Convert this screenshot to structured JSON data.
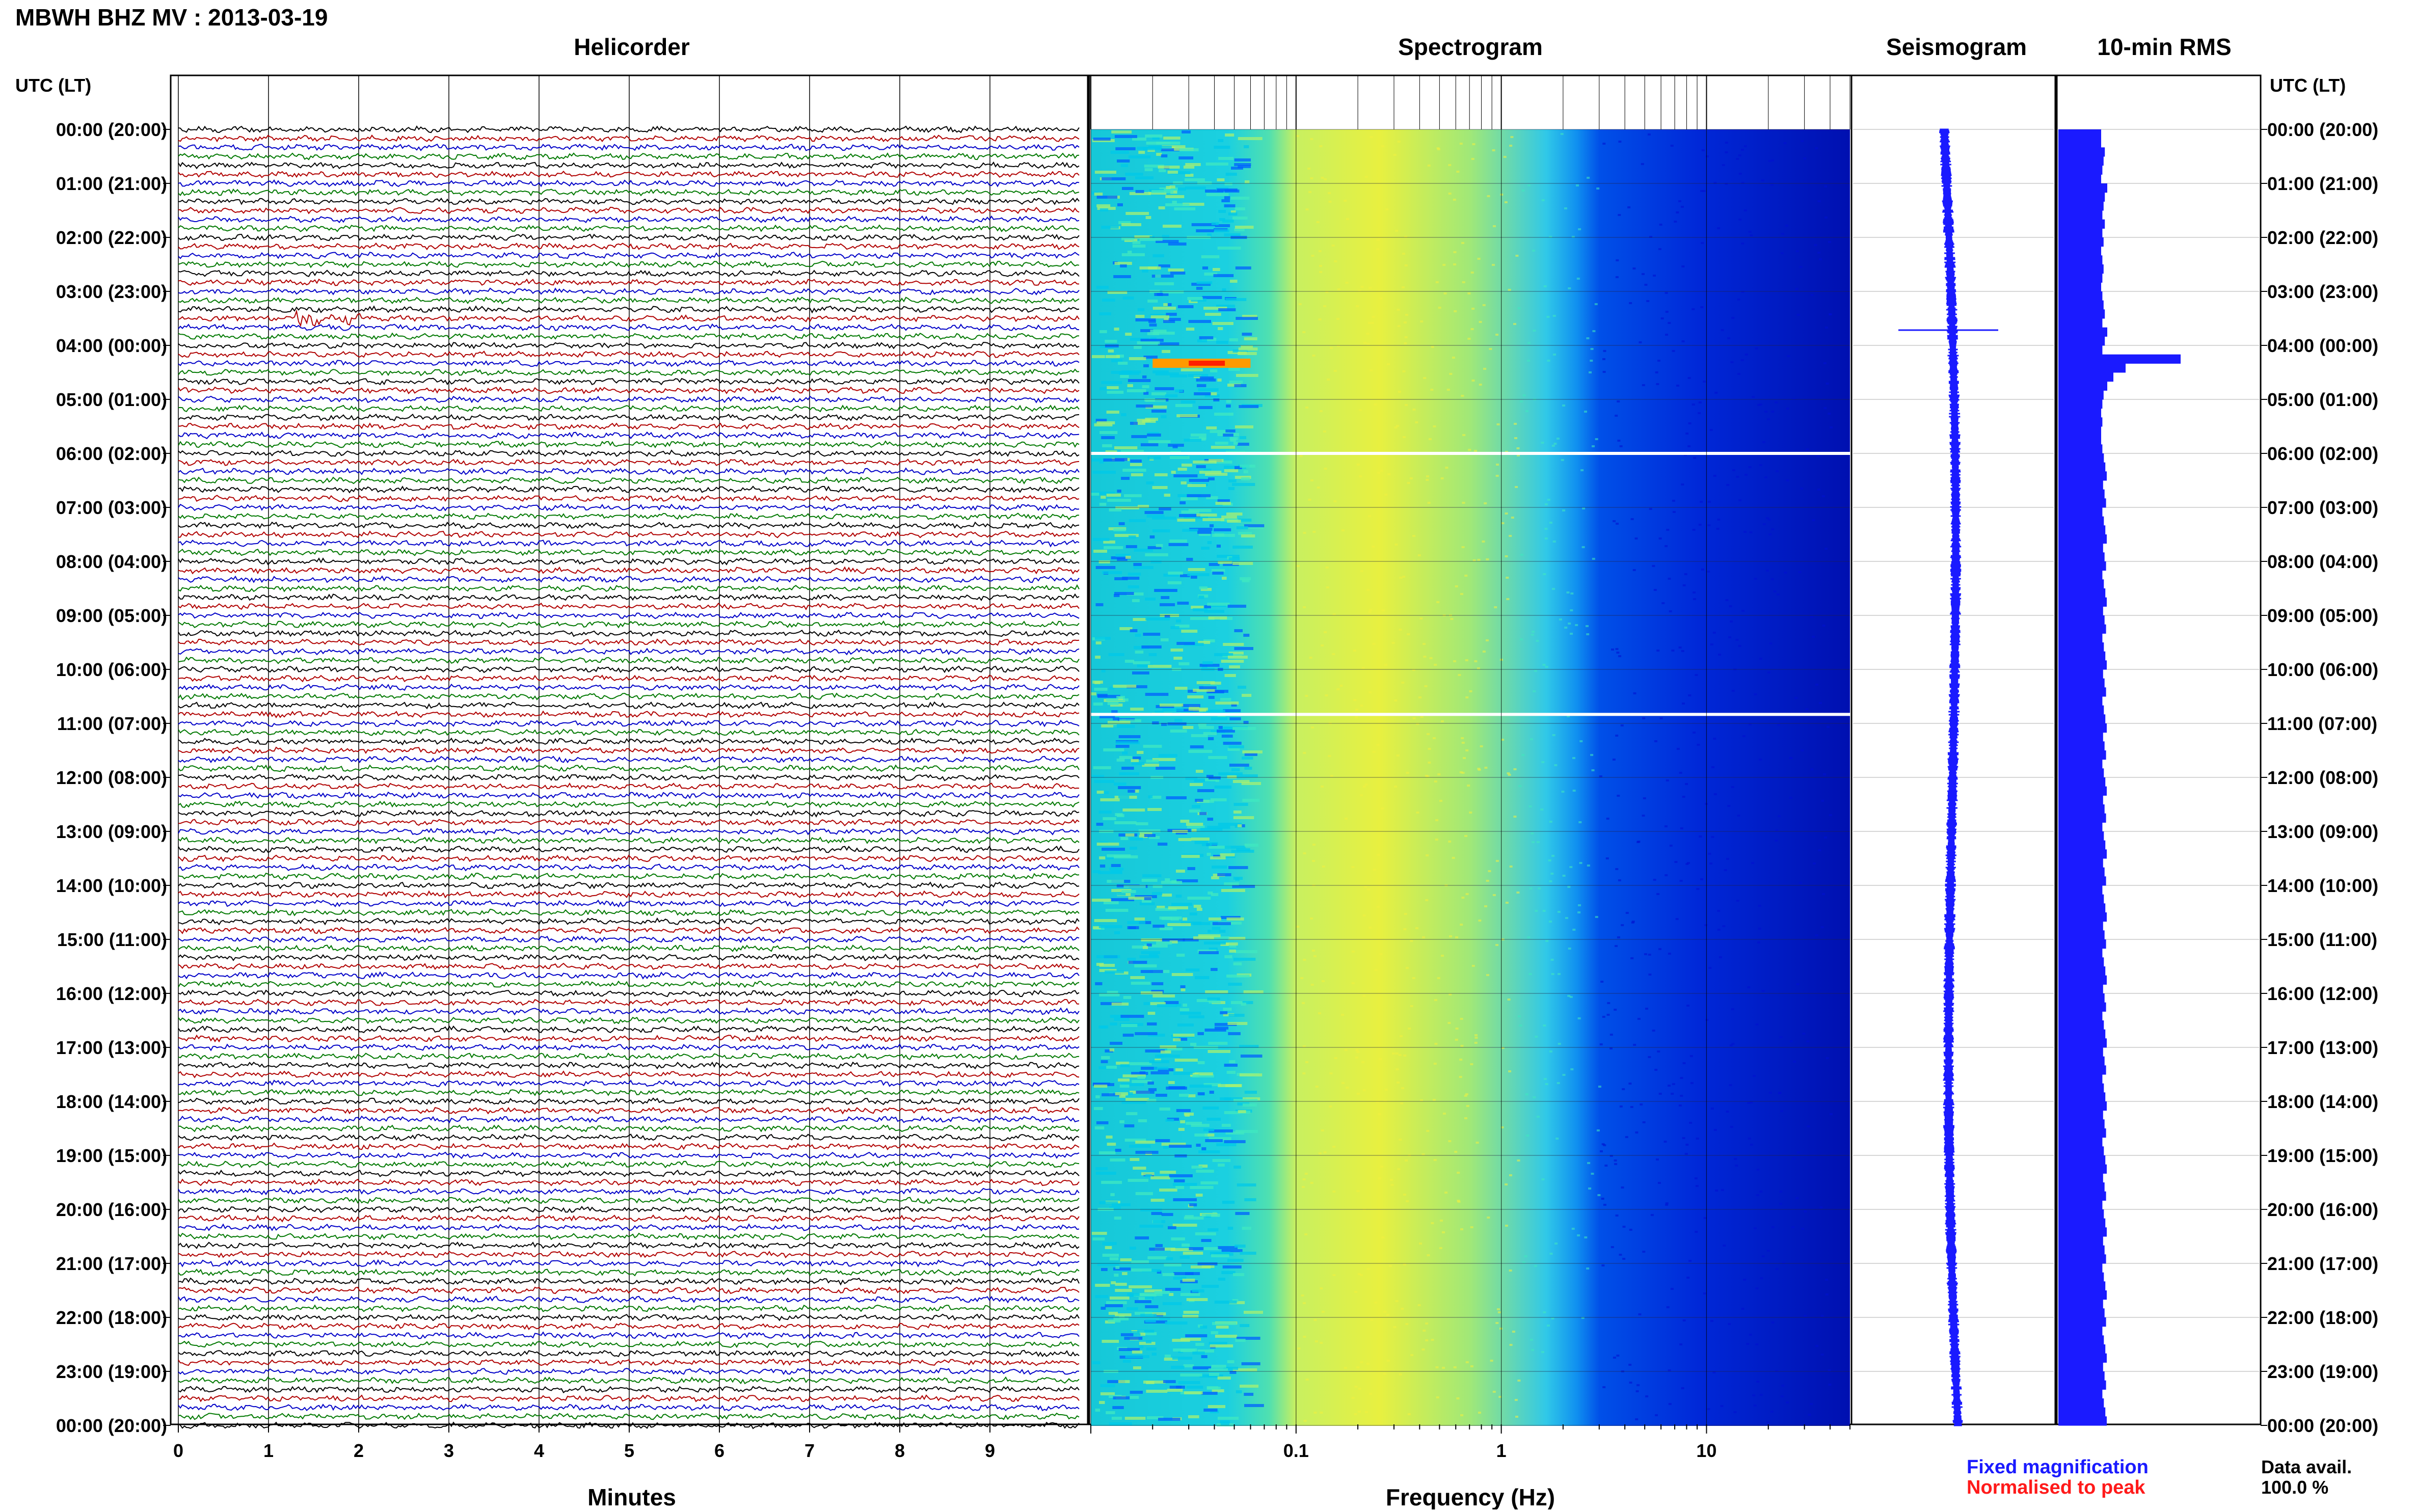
{
  "header": {
    "title": "MBWH BHZ MV : 2013-03-19",
    "utc_label_left": "UTC (LT)",
    "utc_label_right": "UTC (LT)"
  },
  "panels": {
    "helicorder": "Helicorder",
    "spectrogram": "Spectrogram",
    "seismogram": "Seismogram",
    "rms": "10-min RMS"
  },
  "hour_labels": [
    "00:00 (20:00)",
    "01:00 (21:00)",
    "02:00 (22:00)",
    "03:00 (23:00)",
    "04:00 (00:00)",
    "05:00 (01:00)",
    "06:00 (02:00)",
    "07:00 (03:00)",
    "08:00 (04:00)",
    "09:00 (05:00)",
    "10:00 (06:00)",
    "11:00 (07:00)",
    "12:00 (08:00)",
    "13:00 (09:00)",
    "14:00 (10:00)",
    "15:00 (11:00)",
    "16:00 (12:00)",
    "17:00 (13:00)",
    "18:00 (14:00)",
    "19:00 (15:00)",
    "20:00 (16:00)",
    "21:00 (17:00)",
    "22:00 (18:00)",
    "23:00 (19:00)",
    "00:00 (20:00)"
  ],
  "legend": {
    "fixed": "Fixed magnification",
    "fixed_color": "#1a1aff",
    "normalised": "Normalised to peak",
    "normalised_color": "#ff1a1a",
    "data_avail_label": "Data avail.",
    "data_avail_value": "100.0 %"
  },
  "chart_data": [
    {
      "type": "line",
      "panel": "helicorder",
      "xlabel": "Minutes",
      "x_ticks": [
        "0",
        "1",
        "2",
        "3",
        "4",
        "5",
        "6",
        "7",
        "8",
        "9"
      ],
      "xlim": [
        0,
        10
      ],
      "rows_per_hour": 6,
      "trace_colors": [
        "#000000",
        "#b00000",
        "#0000c8",
        "#007800"
      ],
      "events": [
        {
          "time": "03:30",
          "minute": 1.3,
          "description": ""
        }
      ]
    },
    {
      "type": "heatmap",
      "panel": "spectrogram",
      "xlabel": "Frequency (Hz)",
      "x_scale": "log",
      "xlim": [
        0.01,
        50
      ],
      "x_ticks": [
        "0.1",
        "1",
        "10"
      ],
      "colormap": [
        "#00007a",
        "#0010d0",
        "#0060ff",
        "#00c8e8",
        "#40e8c0",
        "#a8f070",
        "#f0f040",
        "#ff9a00",
        "#ff2000"
      ],
      "gaps": [
        "06:00",
        "10:50"
      ]
    },
    {
      "type": "line",
      "panel": "seismogram",
      "color": "#1a1aff",
      "spike_time": "04:00"
    },
    {
      "type": "bar",
      "panel": "10-min RMS",
      "orientation": "horizontal",
      "color": "#1a1aff",
      "interval_minutes": 10,
      "peak_time": "03:50",
      "values_relative": [
        0.35,
        0.35,
        0.38,
        0.37,
        0.36,
        0.35,
        0.4,
        0.38,
        0.37,
        0.36,
        0.38,
        0.36,
        0.37,
        0.35,
        0.36,
        0.37,
        0.36,
        0.35,
        0.36,
        0.37,
        0.38,
        0.36,
        0.4,
        0.38,
        0.36,
        1.0,
        0.55,
        0.45,
        0.4,
        0.37,
        0.36,
        0.35,
        0.36,
        0.35,
        0.35,
        0.36
      ]
    }
  ]
}
